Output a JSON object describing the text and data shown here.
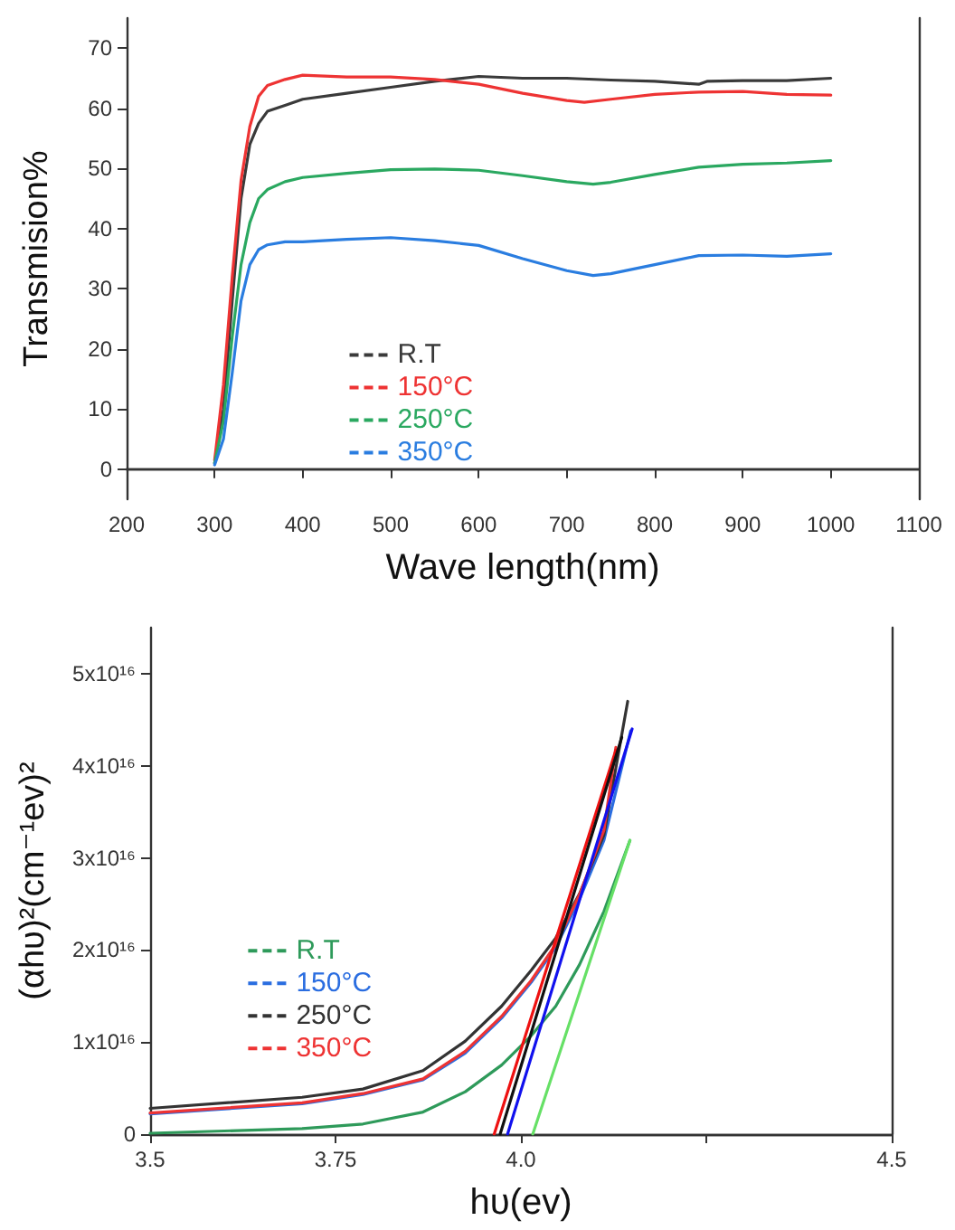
{
  "chart_data": [
    {
      "type": "line",
      "xlabel": "Wave length(nm)",
      "ylabel": "Transmision%",
      "xlim": [
        200,
        1100
      ],
      "xticks": [
        200,
        300,
        400,
        500,
        600,
        700,
        800,
        900,
        1000,
        1100
      ],
      "ylim": [
        -5,
        75
      ],
      "yticks": [
        0,
        10,
        20,
        30,
        40,
        50,
        60,
        70
      ],
      "grid": false,
      "legend": "bottom left",
      "marker": "none",
      "line_style": "solid",
      "series": [
        {
          "name": "R.T",
          "color": "#3a3a3a",
          "x": [
            300,
            310,
            320,
            330,
            340,
            350,
            360,
            380,
            400,
            450,
            500,
            550,
            600,
            650,
            700,
            750,
            800,
            850,
            860,
            900,
            950,
            1000
          ],
          "values": [
            1,
            10,
            28,
            45,
            54,
            57.5,
            59.5,
            60.5,
            61.5,
            62.5,
            63.5,
            64.5,
            65.3,
            65,
            65,
            64.7,
            64.5,
            64,
            64.5,
            64.6,
            64.6,
            65
          ]
        },
        {
          "name": "150°C",
          "color": "#ee3333",
          "x": [
            300,
            310,
            320,
            330,
            340,
            350,
            360,
            380,
            400,
            450,
            500,
            550,
            600,
            650,
            700,
            720,
            750,
            800,
            850,
            900,
            950,
            1000
          ],
          "values": [
            1.5,
            14,
            32,
            48,
            57,
            62,
            63.8,
            64.8,
            65.5,
            65.2,
            65.2,
            64.8,
            64,
            62.5,
            61.3,
            61,
            61.5,
            62.3,
            62.7,
            62.8,
            62.3,
            62.2
          ]
        },
        {
          "name": "250°C",
          "color": "#2aa860",
          "x": [
            300,
            310,
            320,
            330,
            340,
            350,
            360,
            380,
            400,
            450,
            500,
            550,
            600,
            650,
            700,
            730,
            750,
            800,
            850,
            900,
            950,
            1000
          ],
          "values": [
            1,
            8,
            22,
            34,
            41,
            45,
            46.5,
            47.8,
            48.5,
            49.2,
            49.8,
            49.9,
            49.7,
            48.8,
            47.8,
            47.4,
            47.7,
            49,
            50.2,
            50.7,
            50.9,
            51.3
          ]
        },
        {
          "name": "350°C",
          "color": "#2a7de0",
          "x": [
            300,
            310,
            320,
            330,
            340,
            350,
            360,
            380,
            400,
            450,
            500,
            550,
            600,
            650,
            700,
            730,
            750,
            800,
            850,
            900,
            950,
            1000
          ],
          "values": [
            0.7,
            5,
            16,
            28,
            34,
            36.5,
            37.3,
            37.8,
            37.8,
            38.2,
            38.5,
            38,
            37.2,
            35,
            33,
            32.2,
            32.5,
            34,
            35.5,
            35.6,
            35.4,
            35.8
          ]
        }
      ]
    },
    {
      "type": "line",
      "xlabel": "hυ(ev)",
      "ylabel": "(αhυ)²(cm⁻¹ev)²",
      "xlim": [
        3.5,
        4.5
      ],
      "xticks": [
        3.5,
        3.75,
        {
          "value": 4.0,
          "label": "4.0"
        },
        {
          "value": 4.25,
          "label": null
        },
        4.5
      ],
      "ylim": [
        0,
        5.5e+16
      ],
      "yticks": [
        {
          "value": 0,
          "label": "0"
        },
        {
          "value": 1e+16,
          "label": "1x10¹⁶"
        },
        {
          "value": 2e+16,
          "label": "2x10¹⁶"
        },
        {
          "value": 3e+16,
          "label": "3x10¹⁶"
        },
        {
          "value": 4e+16,
          "label": "4x10¹⁶"
        },
        {
          "value": 5e+16,
          "label": "5x10¹⁶"
        }
      ],
      "grid": false,
      "legend": "bottom left",
      "marker": "none",
      "line_style": "solid",
      "series": [
        {
          "name": "R.T",
          "color": "#2e9a5a",
          "x": [
            3.5,
            3.705,
            3.787,
            3.868,
            3.925,
            3.974,
            4.014,
            4.047,
            4.079,
            4.112,
            4.147
          ],
          "values": [
            100000000000000.0,
            600000000000000.0,
            1100000000000000.0,
            2400000000000000.0,
            4600000000000000.0,
            7500000000000000.0,
            1.07e+16,
            1.39e+16,
            1.84e+16,
            2.42e+16,
            3.19e+16
          ]
        },
        {
          "name": "150°C",
          "color": "#2a6de0",
          "x": [
            3.5,
            3.705,
            3.787,
            3.868,
            3.925,
            3.974,
            4.014,
            4.047,
            4.079,
            4.112,
            4.148
          ],
          "values": [
            2200000000000000.0,
            3300000000000000.0,
            4300000000000000.0,
            5900000000000000.0,
            8800000000000000.0,
            1.26e+16,
            1.65e+16,
            2.03e+16,
            2.55e+16,
            3.19e+16,
            4.38e+16
          ]
        },
        {
          "name": "250°C",
          "color": "#333333",
          "x": [
            3.5,
            3.705,
            3.787,
            3.868,
            3.925,
            3.974,
            4.014,
            4.047,
            4.079,
            4.112,
            4.144
          ],
          "values": [
            2800000000000000.0,
            4000000000000000.0,
            4900000000000000.0,
            6900000000000000.0,
            1.01e+16,
            1.39e+16,
            1.78e+16,
            2.13e+16,
            2.61e+16,
            3.25e+16,
            4.7e+16
          ]
        },
        {
          "name": "350°C",
          "color": "#ee3333",
          "x": [
            3.5,
            3.705,
            3.787,
            3.868,
            3.925,
            3.974,
            4.014,
            4.047,
            4.079,
            4.112,
            4.128
          ],
          "values": [
            2300000000000000.0,
            3400000000000000.0,
            4400000000000000.0,
            6000000000000000.0,
            9000000000000000.0,
            1.28e+16,
            1.67e+16,
            2.06e+16,
            2.6e+16,
            3.3e+16,
            4.2e+16
          ]
        },
        {
          "color": "#ee1111",
          "x": [
            3.964,
            4.128
          ],
          "values": [
            0,
            4.17e+16
          ]
        },
        {
          "color": "#111111",
          "x": [
            3.972,
            4.136
          ],
          "values": [
            0,
            4.31e+16
          ]
        },
        {
          "color": "#1111ee",
          "x": [
            3.982,
            4.15
          ],
          "values": [
            0,
            4.4e+16
          ]
        },
        {
          "color": "#66e066",
          "x": [
            4.016,
            4.147
          ],
          "values": [
            0,
            3.19e+16
          ]
        }
      ]
    }
  ]
}
